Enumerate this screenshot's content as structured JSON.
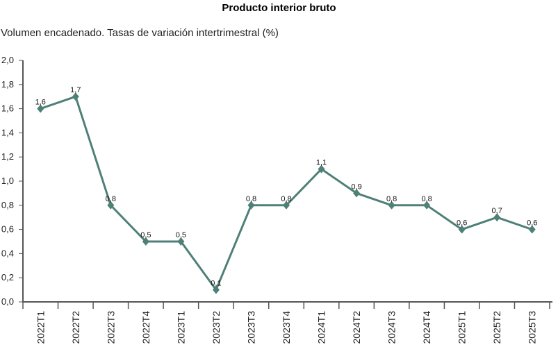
{
  "chart_data": {
    "type": "line",
    "title": "Producto interior bruto",
    "subtitle": "Volumen encadenado. Tasas de variación intertrimestral (%)",
    "categories": [
      "2022T1",
      "2022T2",
      "2022T3",
      "2022T4",
      "2023T1",
      "2023T2",
      "2023T3",
      "2023T4",
      "2024T1",
      "2024T2",
      "2024T3",
      "2024T4",
      "2025T1",
      "2025T2",
      "2025T3"
    ],
    "values": [
      1.6,
      1.7,
      0.8,
      0.5,
      0.5,
      0.1,
      0.8,
      0.8,
      1.1,
      0.9,
      0.8,
      0.8,
      0.6,
      0.7,
      0.6
    ],
    "data_labels": [
      "1,6",
      "1,7",
      "0,8",
      "0,5",
      "0,5",
      "0,1",
      "0,8",
      "0,8",
      "1,1",
      "0,9",
      "0,8",
      "0,8",
      "0,6",
      "0,7",
      "0,6"
    ],
    "ylim": [
      0,
      2.0
    ],
    "yticks": [
      "0,0",
      "0,2",
      "0,4",
      "0,6",
      "0,8",
      "1,0",
      "1,2",
      "1,4",
      "1,6",
      "1,8",
      "2,0"
    ],
    "xlabel": "",
    "ylabel": "",
    "grid": false,
    "marker": "diamond",
    "color": "#4e8077"
  }
}
